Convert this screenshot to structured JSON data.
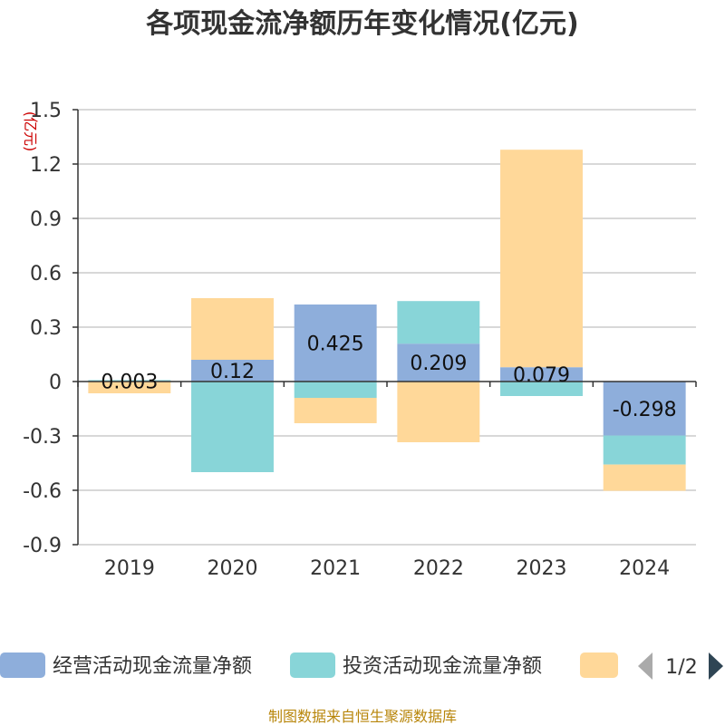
{
  "title": "各项现金流净额历年变化情况(亿元)",
  "footer": "制图数据来自恒生聚源数据库",
  "legend": {
    "page_indicator": "1/2",
    "prev_icon": "triangle-left-icon",
    "next_icon": "triangle-right-icon"
  },
  "chart_data": {
    "type": "bar",
    "stacked": true,
    "unit_label": "(亿元)",
    "categories": [
      "2019",
      "2020",
      "2021",
      "2022",
      "2023",
      "2024"
    ],
    "ylim": [
      -0.9,
      1.5
    ],
    "yticks": [
      "1.5",
      "1.2",
      "0.9",
      "0.6",
      "0.3",
      "0",
      "-0.3",
      "-0.6",
      "-0.9"
    ],
    "grid": true,
    "legend_position": "bottom",
    "series": [
      {
        "name": "经营活动现金流量净额",
        "color": "#8eaedb",
        "values": [
          0.003,
          0.12,
          0.425,
          0.209,
          0.079,
          -0.298
        ],
        "labels": [
          "0.003",
          "0.12",
          "0.425",
          "0.209",
          "0.079",
          "-0.298"
        ]
      },
      {
        "name": "投资活动现金流量净额",
        "color": "#88d5d8",
        "values": [
          0.005,
          -0.5,
          -0.09,
          0.235,
          -0.08,
          -0.16
        ]
      },
      {
        "name": "",
        "color": "#ffd899",
        "values": [
          -0.065,
          0.34,
          -0.14,
          -0.335,
          1.2,
          -0.145
        ]
      }
    ]
  }
}
